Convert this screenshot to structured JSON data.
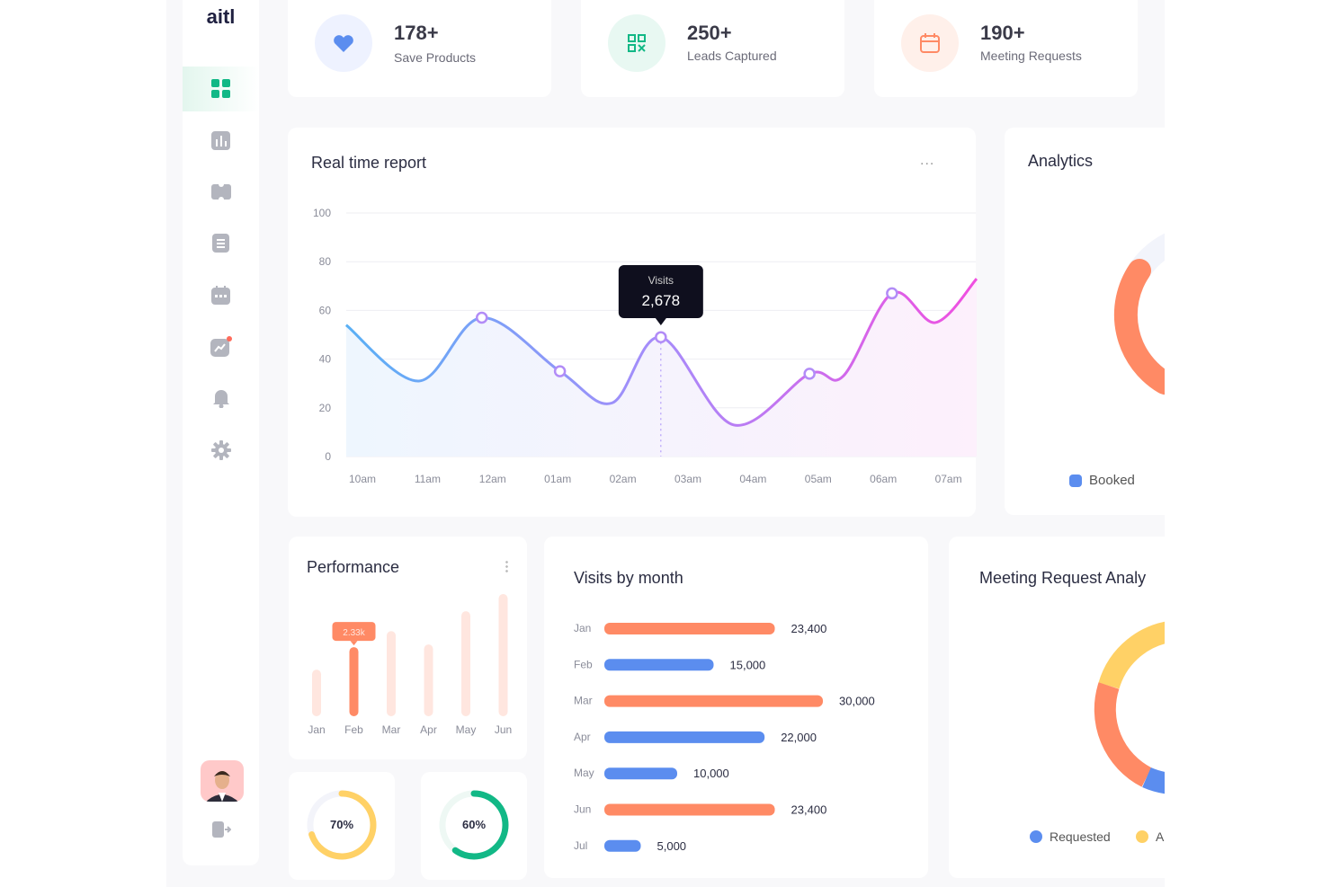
{
  "brand": "aitl",
  "colors": {
    "green": "#12b886",
    "blue": "#5b8def",
    "orange": "#ff8a65",
    "yellow": "#ffd166",
    "purple": "#a78bfa",
    "pink": "#e64fe0"
  },
  "sidebar": {
    "items": [
      {
        "icon": "dashboard-icon",
        "active": true
      },
      {
        "icon": "bar-chart-icon"
      },
      {
        "icon": "ticket-icon"
      },
      {
        "icon": "document-icon"
      },
      {
        "icon": "calendar-icon"
      },
      {
        "icon": "trend-chart-icon",
        "badge": true
      },
      {
        "icon": "bell-icon"
      },
      {
        "icon": "gear-icon"
      }
    ],
    "bottom": [
      {
        "icon": "avatar"
      },
      {
        "icon": "logout-icon"
      }
    ]
  },
  "stats": [
    {
      "value": "178+",
      "label": "Save Products",
      "icon": "heart-icon"
    },
    {
      "value": "250+",
      "label": "Leads Captured",
      "icon": "qr-code-icon"
    },
    {
      "value": "190+",
      "label": "Meeting Requests",
      "icon": "calendar-icon"
    }
  ],
  "realtime": {
    "title": "Real time report",
    "menu": "...",
    "tooltip": {
      "label": "Visits",
      "value": "2,678"
    }
  },
  "analytics": {
    "title": "Analytics",
    "legend": [
      "Booked"
    ]
  },
  "performance": {
    "title": "Performance",
    "tooltip": "2.33k"
  },
  "progress": [
    {
      "value": 70,
      "label": "70%"
    },
    {
      "value": 60,
      "label": "60%"
    }
  ],
  "visits_title": "Visits by month",
  "meeting": {
    "title": "Meeting Request Analy",
    "legend": [
      "Requested",
      "A"
    ]
  },
  "chart_data": [
    {
      "type": "line",
      "title": "Real time report",
      "ylim": [
        0,
        100
      ],
      "yticks": [
        "0",
        "20",
        "40",
        "60",
        "80",
        "100"
      ],
      "categories": [
        "10am",
        "11am",
        "12am",
        "01am",
        "02am",
        "03am",
        "04am",
        "05am",
        "06am",
        "07am"
      ],
      "points": [
        {
          "x": "09:45",
          "y": 54
        },
        {
          "x": "10:52",
          "y": 31
        },
        {
          "x": "11:50",
          "y": 57,
          "marker": true
        },
        {
          "x": "13:02",
          "y": 35,
          "marker": true
        },
        {
          "x": "13:50",
          "y": 22
        },
        {
          "x": "14:35",
          "y": 49,
          "marker": true
        },
        {
          "x": "15:42",
          "y": 13
        },
        {
          "x": "16:52",
          "y": 34,
          "marker": true
        },
        {
          "x": "17:23",
          "y": 33
        },
        {
          "x": "18:08",
          "y": 67,
          "marker": true
        },
        {
          "x": "18:48",
          "y": 55
        },
        {
          "x": "19:26",
          "y": 73
        }
      ],
      "grid": true
    },
    {
      "type": "bar",
      "title": "Performance",
      "categories": [
        "Jan",
        "Feb",
        "Mar",
        "Apr",
        "May",
        "Jun"
      ],
      "values": [
        1.57,
        2.33,
        2.87,
        2.42,
        3.54,
        4.12
      ],
      "unit": "k",
      "highlight": "Feb"
    },
    {
      "type": "bar",
      "orientation": "horizontal",
      "title": "Visits by month",
      "categories": [
        "Jan",
        "Feb",
        "Mar",
        "Apr",
        "May",
        "Jun",
        "Jul"
      ],
      "values": [
        23400,
        15000,
        30000,
        22000,
        10000,
        23400,
        5000
      ],
      "labels": [
        "23,400",
        "15,000",
        "30,000",
        "22,000",
        "10,000",
        "23,400",
        "5,000"
      ],
      "colors": [
        "#ff8a65",
        "#5b8def",
        "#ff8a65",
        "#5b8def",
        "#5b8def",
        "#ff8a65",
        "#5b8def"
      ]
    },
    {
      "type": "pie",
      "title": "Analytics",
      "series": [
        {
          "name": "Booked"
        }
      ]
    },
    {
      "type": "pie",
      "title": "Meeting Request Analy",
      "series": [
        {
          "name": "Requested"
        },
        {
          "name": "A"
        }
      ]
    }
  ]
}
